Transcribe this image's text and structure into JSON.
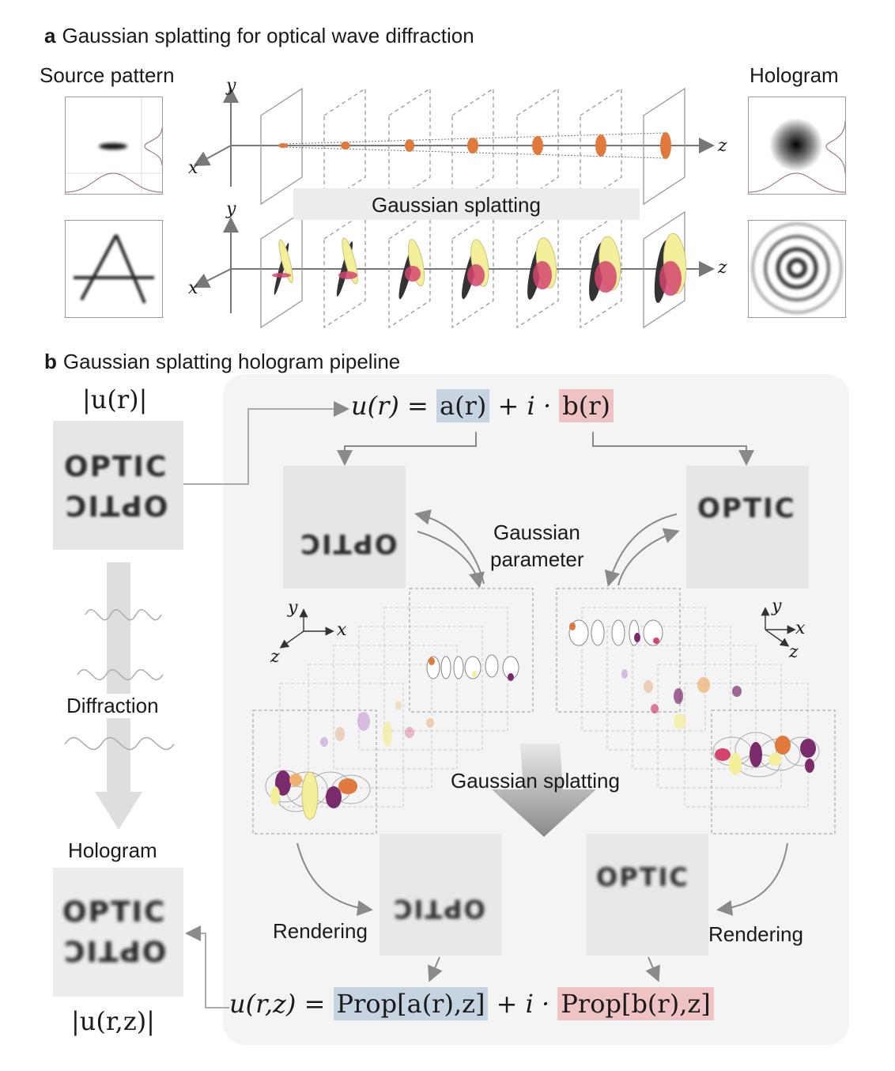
{
  "panel_a": {
    "letter": "a",
    "title": "Gaussian splatting for optical wave diffraction",
    "source_label": "Source pattern",
    "hologram_label": "Hologram",
    "banner": "Gaussian splatting",
    "axes": {
      "x": "x",
      "y": "y",
      "z": "z"
    }
  },
  "panel_b": {
    "letter": "b",
    "title": "Gaussian splatting hologram pipeline",
    "input_label": "|u(r)|",
    "diffraction_label": "Diffraction",
    "hologram_label": "Hologram",
    "output_label": "|u(r,z)|",
    "equation_top": {
      "lhs": "u(r) = ",
      "a": "a(r)",
      "mid": " + i · ",
      "b": "b(r)"
    },
    "equation_bottom": {
      "lhs": "u(r,z) = ",
      "a": "Prop[a(r),z]",
      "mid": " + i · ",
      "b": "Prop[b(r),z]"
    },
    "gaussian_parameter": [
      "Gaussian",
      "parameter"
    ],
    "gaussian_splatting": "Gaussian splatting",
    "rendering_left": "Rendering",
    "rendering_right": "Rendering",
    "optic_text": "OPTIC",
    "axes_left": {
      "x": "x",
      "y": "y",
      "z": "z"
    },
    "axes_right": {
      "x": "x",
      "y": "y",
      "z": "z"
    }
  },
  "colors": {
    "panel_bg": "#f4f4f4",
    "blue_highlight": "#c6d3e0",
    "red_highlight": "#efc3c3",
    "gaussian_orange": "#e07a3c",
    "gaussian_pink": "#d4456d",
    "gaussian_yellow": "#f4ef9a",
    "gaussian_purple": "#7a2b6b",
    "arrow_gray": "#8a8a8a"
  }
}
